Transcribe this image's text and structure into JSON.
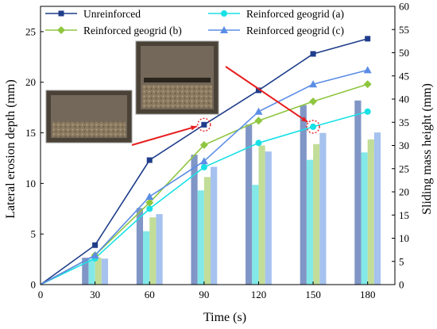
{
  "chart_data": {
    "type": "line",
    "x": [
      0,
      30,
      60,
      90,
      120,
      150,
      180
    ],
    "xlabel": "Time (s)",
    "ylabel": "Lateral erosion depth (mm)",
    "y2label": "Sliding mass height (mm)",
    "xlim": [
      0,
      195
    ],
    "ylim": [
      0,
      27.5
    ],
    "y2lim": [
      0,
      60
    ],
    "xticks": [
      "0",
      "30",
      "60",
      "90",
      "120",
      "150",
      "180"
    ],
    "yticks": [
      "0",
      "5",
      "10",
      "15",
      "20",
      "25"
    ],
    "y2ticks": [
      "0",
      "5",
      "10",
      "15",
      "20",
      "25",
      "30",
      "35",
      "40",
      "45",
      "50",
      "55",
      "60"
    ],
    "legend_position": "top",
    "series": [
      {
        "name": "Unreinforced",
        "color": "#1f3d8a",
        "marker": "square",
        "values": [
          0,
          3.9,
          12.3,
          15.8,
          19.2,
          22.8,
          24.3
        ],
        "bar_values": [
          5.8,
          16.5,
          28.0,
          34.5,
          38.7,
          39.7
        ]
      },
      {
        "name": "Reinforced geogrid (a)",
        "color": "#19e1e6",
        "marker": "circle",
        "values": [
          0,
          2.6,
          7.5,
          11.6,
          14.0,
          15.6,
          17.1
        ],
        "bar_values": [
          5.5,
          11.5,
          20.3,
          21.5,
          26.9,
          28.5
        ]
      },
      {
        "name": "Reinforced geogrid (b)",
        "color": "#8fc640",
        "marker": "diamond",
        "values": [
          0,
          2.9,
          8.1,
          13.8,
          16.2,
          18.1,
          19.8
        ],
        "bar_values": [
          5.8,
          14.5,
          23.2,
          30.0,
          30.3,
          31.3
        ]
      },
      {
        "name": "Reinforced geogrid (c)",
        "color": "#5b8de6",
        "marker": "triangle",
        "values": [
          0,
          2.9,
          8.7,
          12.2,
          17.1,
          19.8,
          21.2
        ],
        "bar_values": [
          5.6,
          15.2,
          25.4,
          28.7,
          32.7,
          32.8
        ]
      }
    ],
    "bar_colors": [
      "#8096c6",
      "#82e8e8",
      "#c2dd98",
      "#a6c2ee"
    ]
  }
}
